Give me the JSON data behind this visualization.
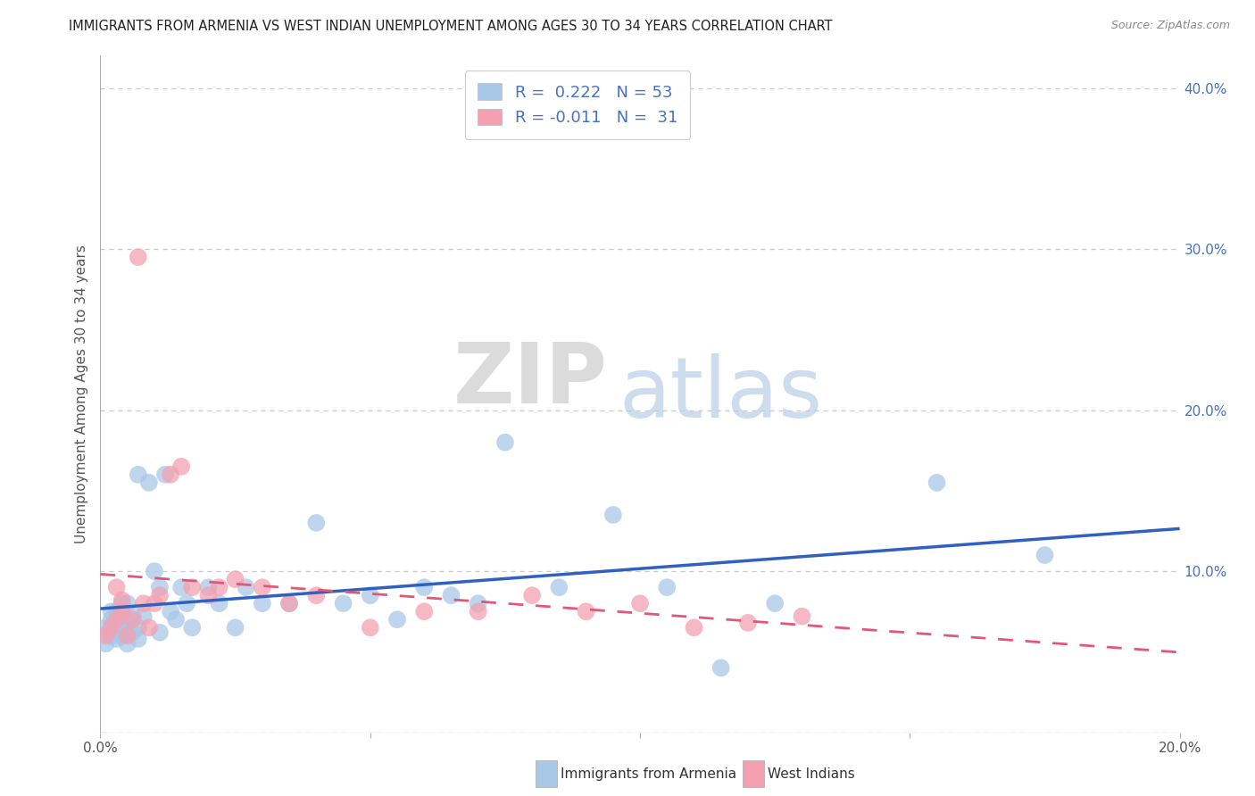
{
  "title": "IMMIGRANTS FROM ARMENIA VS WEST INDIAN UNEMPLOYMENT AMONG AGES 30 TO 34 YEARS CORRELATION CHART",
  "source": "Source: ZipAtlas.com",
  "ylabel": "Unemployment Among Ages 30 to 34 years",
  "xlim": [
    0.0,
    0.2
  ],
  "ylim": [
    0.0,
    0.42
  ],
  "yticks": [
    0.0,
    0.1,
    0.2,
    0.3,
    0.4
  ],
  "ytick_labels_right": [
    "",
    "10.0%",
    "20.0%",
    "30.0%",
    "40.0%"
  ],
  "watermark_zip": "ZIP",
  "watermark_atlas": "atlas",
  "R_armenia": 0.222,
  "N_armenia": 53,
  "R_westindian": -0.011,
  "N_westindian": 31,
  "armenia_color": "#a8c8e8",
  "westindian_color": "#f4a0b0",
  "armenia_line_color": "#3060c0",
  "westindian_line_color": "#e05878",
  "westindian_line_dash": [
    6,
    4
  ],
  "background_color": "#ffffff",
  "grid_color": "#c8c8c8",
  "title_color": "#222222",
  "title_fontsize": 10.5,
  "axis_label_color": "#555555",
  "right_tick_color": "#4472c4",
  "legend_label_color": "#4472c4",
  "legend_R_color": "#4472c4",
  "source_color": "#888888",
  "armenia_scatter_x": [
    0.001,
    0.001,
    0.002,
    0.002,
    0.002,
    0.003,
    0.003,
    0.003,
    0.003,
    0.004,
    0.004,
    0.004,
    0.005,
    0.005,
    0.005,
    0.005,
    0.006,
    0.006,
    0.007,
    0.007,
    0.007,
    0.008,
    0.009,
    0.01,
    0.011,
    0.011,
    0.012,
    0.013,
    0.014,
    0.015,
    0.016,
    0.017,
    0.02,
    0.022,
    0.025,
    0.027,
    0.03,
    0.035,
    0.04,
    0.045,
    0.05,
    0.055,
    0.06,
    0.065,
    0.07,
    0.075,
    0.085,
    0.095,
    0.105,
    0.115,
    0.125,
    0.155,
    0.175
  ],
  "armenia_scatter_y": [
    0.055,
    0.065,
    0.06,
    0.07,
    0.075,
    0.058,
    0.065,
    0.07,
    0.075,
    0.06,
    0.068,
    0.08,
    0.055,
    0.062,
    0.07,
    0.08,
    0.062,
    0.072,
    0.058,
    0.065,
    0.16,
    0.072,
    0.155,
    0.1,
    0.062,
    0.09,
    0.16,
    0.075,
    0.07,
    0.09,
    0.08,
    0.065,
    0.09,
    0.08,
    0.065,
    0.09,
    0.08,
    0.08,
    0.13,
    0.08,
    0.085,
    0.07,
    0.09,
    0.085,
    0.08,
    0.18,
    0.09,
    0.135,
    0.09,
    0.04,
    0.08,
    0.155,
    0.11
  ],
  "westindian_scatter_x": [
    0.001,
    0.002,
    0.003,
    0.003,
    0.004,
    0.004,
    0.005,
    0.006,
    0.007,
    0.008,
    0.009,
    0.01,
    0.011,
    0.013,
    0.015,
    0.017,
    0.02,
    0.022,
    0.025,
    0.03,
    0.035,
    0.04,
    0.05,
    0.06,
    0.07,
    0.08,
    0.09,
    0.1,
    0.11,
    0.12,
    0.13
  ],
  "westindian_scatter_y": [
    0.06,
    0.065,
    0.07,
    0.09,
    0.075,
    0.082,
    0.06,
    0.07,
    0.295,
    0.08,
    0.065,
    0.08,
    0.085,
    0.16,
    0.165,
    0.09,
    0.085,
    0.09,
    0.095,
    0.09,
    0.08,
    0.085,
    0.065,
    0.075,
    0.075,
    0.085,
    0.075,
    0.08,
    0.065,
    0.068,
    0.072
  ]
}
